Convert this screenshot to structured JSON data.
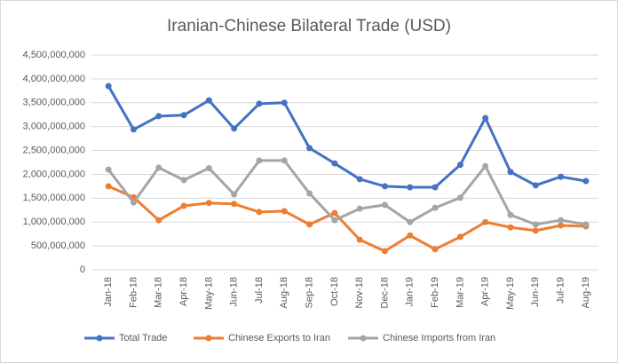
{
  "chart_data": {
    "type": "line",
    "title": "Iranian-Chinese Bilateral Trade (USD)",
    "categories": [
      "Jan-18",
      "Feb-18",
      "Mar-18",
      "Apr-18",
      "May-18",
      "Jun-18",
      "Jul-18",
      "Aug-18",
      "Sep-18",
      "Oct-18",
      "Nov-18",
      "Dec-18",
      "Jan-19",
      "Feb-19",
      "Mar-19",
      "Apr-19",
      "May-19",
      "Jun-19",
      "Jul-19",
      "Aug-19"
    ],
    "series": [
      {
        "name": "Total Trade",
        "color": "#4472c4",
        "values": [
          3850000000,
          2940000000,
          3220000000,
          3240000000,
          3550000000,
          2960000000,
          3480000000,
          3500000000,
          2550000000,
          2230000000,
          1900000000,
          1750000000,
          1730000000,
          1730000000,
          2200000000,
          3180000000,
          2050000000,
          1770000000,
          1950000000,
          1860000000
        ]
      },
      {
        "name": "Chinese Exports to Iran",
        "color": "#ed7d31",
        "values": [
          1750000000,
          1520000000,
          1040000000,
          1340000000,
          1400000000,
          1380000000,
          1210000000,
          1230000000,
          950000000,
          1190000000,
          630000000,
          390000000,
          720000000,
          430000000,
          690000000,
          1000000000,
          890000000,
          820000000,
          930000000,
          910000000
        ]
      },
      {
        "name": "Chinese Imports from Iran",
        "color": "#a5a5a5",
        "values": [
          2100000000,
          1410000000,
          2140000000,
          1880000000,
          2130000000,
          1580000000,
          2290000000,
          2290000000,
          1600000000,
          1040000000,
          1280000000,
          1360000000,
          1000000000,
          1300000000,
          1510000000,
          2170000000,
          1150000000,
          950000000,
          1040000000,
          950000000
        ]
      }
    ],
    "ylim": [
      0,
      4500000000
    ],
    "yticks": [
      0,
      {
        "value": 500000000,
        "label": "500,000,000"
      },
      {
        "value": 1000000000,
        "label": "1,000,000,000"
      },
      {
        "value": 1500000000,
        "label": "1,500,000,000"
      },
      {
        "value": 2000000000,
        "label": "2,000,000,000"
      },
      {
        "value": 2500000000,
        "label": "2,500,000,000"
      },
      {
        "value": 3000000000,
        "label": "3,000,000,000"
      },
      {
        "value": 3500000000,
        "label": "3,500,000,000"
      },
      {
        "value": 4000000000,
        "label": "4,000,000,000"
      },
      {
        "value": 4500000000,
        "label": "4,500,000,000"
      }
    ],
    "grid": true,
    "legend": "bottom"
  }
}
